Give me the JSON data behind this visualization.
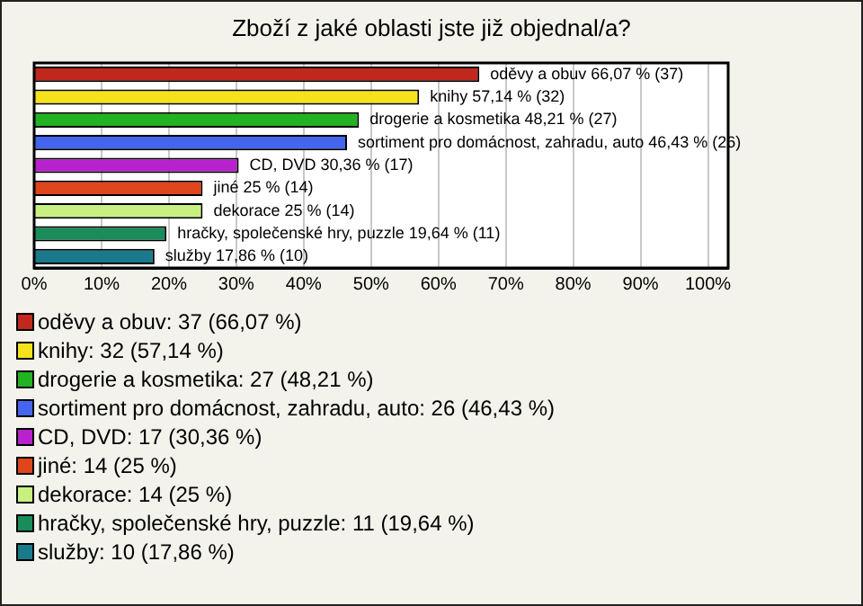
{
  "chart_data": {
    "type": "bar",
    "orientation": "horizontal",
    "title": "Zboží z jaké oblasti jste již objednal/a?",
    "categories": [
      null,
      null,
      null,
      null,
      null,
      null,
      null,
      null,
      null
    ],
    "values": [
      66.07,
      57.14,
      48.21,
      46.43,
      30.36,
      25,
      25,
      19.64,
      17.86
    ],
    "colors": [
      "#c0281c",
      "#f5e21a",
      "#22b322",
      "#4466ee",
      "#b822cc",
      "#e0461c",
      "#c8f080",
      "#1a8c5a",
      "#1a7a8c"
    ],
    "value_labels": [
      "oděvy a obuv 66,07 % (37)",
      "knihy 57,14 % (32)",
      "drogerie a kosmetika 48,21 % (27)",
      "sortiment pro domácnost, zahradu, auto 46,43 % (26)",
      "CD, DVD 30,36 % (17)",
      "jiné 25 % (14)",
      "dekorace 25 % (14)",
      "hračky, společenské hry, puzzle 19,64 % (11)",
      "služby 17,86 % (10)"
    ],
    "annotations": [
      "oděvy a obuv: 37 (66,07 %)",
      "knihy: 32 (57,14 %)",
      "drogerie a kosmetika: 27 (48,21 %)",
      "sortiment pro domácnost, zahradu, auto: 26 (46,43 %)",
      "CD, DVD: 17 (30,36 %)",
      "jiné: 14 (25 %)",
      "dekorace: 14 (25 %)",
      "hračky, společenské hry, puzzle: 11 (19,64 %)",
      "služby: 10 (17,86 %)"
    ],
    "xlim": [
      0,
      103
    ],
    "xticks": [
      {
        "value": 0,
        "label": "0%"
      },
      {
        "value": 10,
        "label": "10%"
      },
      {
        "value": 20,
        "label": "20%"
      },
      {
        "value": 30,
        "label": "30%"
      },
      {
        "value": 40,
        "label": "40%"
      },
      {
        "value": 50,
        "label": "50%"
      },
      {
        "value": 60,
        "label": "60%"
      },
      {
        "value": 70,
        "label": "70%"
      },
      {
        "value": 80,
        "label": "80%"
      },
      {
        "value": 90,
        "label": "90%"
      },
      {
        "value": 100,
        "label": "100%"
      }
    ],
    "grid": "x",
    "tick_labels": "x"
  }
}
